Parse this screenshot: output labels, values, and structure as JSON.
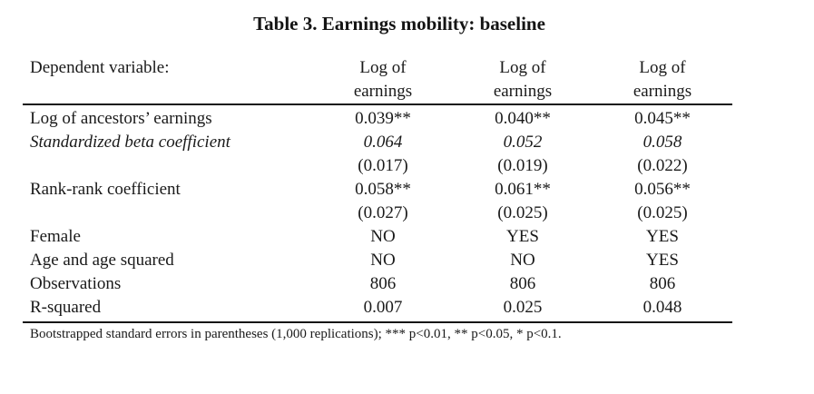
{
  "page": {
    "title": "Table 3. Earnings mobility: baseline"
  },
  "table": {
    "header": {
      "label": "Dependent variable:",
      "columns": [
        "Log of earnings",
        "Log of earnings",
        "Log of earnings"
      ]
    },
    "rows": [
      {
        "label": "Log of ancestors’ earnings",
        "values": [
          "0.039**",
          "0.040**",
          "0.045**"
        ]
      },
      {
        "label": "Standardized beta coefficient",
        "values": [
          "0.064",
          "0.052",
          "0.058"
        ]
      },
      {
        "label": "",
        "values": [
          "(0.017)",
          "(0.019)",
          "(0.022)"
        ]
      },
      {
        "label": "Rank-rank coefficient",
        "values": [
          "0.058**",
          "0.061**",
          "0.056**"
        ]
      },
      {
        "label": "",
        "values": [
          "(0.027)",
          "(0.025)",
          "(0.025)"
        ]
      },
      {
        "label": "Female",
        "values": [
          "NO",
          "YES",
          "YES"
        ]
      },
      {
        "label": "Age and age squared",
        "values": [
          "NO",
          "NO",
          "YES"
        ]
      },
      {
        "label": "Observations",
        "values": [
          "806",
          "806",
          "806"
        ]
      },
      {
        "label": "R-squared",
        "values": [
          "0.007",
          "0.025",
          "0.048"
        ]
      }
    ],
    "footnote": "Bootstrapped standard errors in parentheses (1,000 replications); *** p<0.01, ** p<0.05, * p<0.1."
  },
  "colors": {
    "text": "#1a1a1a",
    "rule": "#161616",
    "background": "#ffffff"
  }
}
